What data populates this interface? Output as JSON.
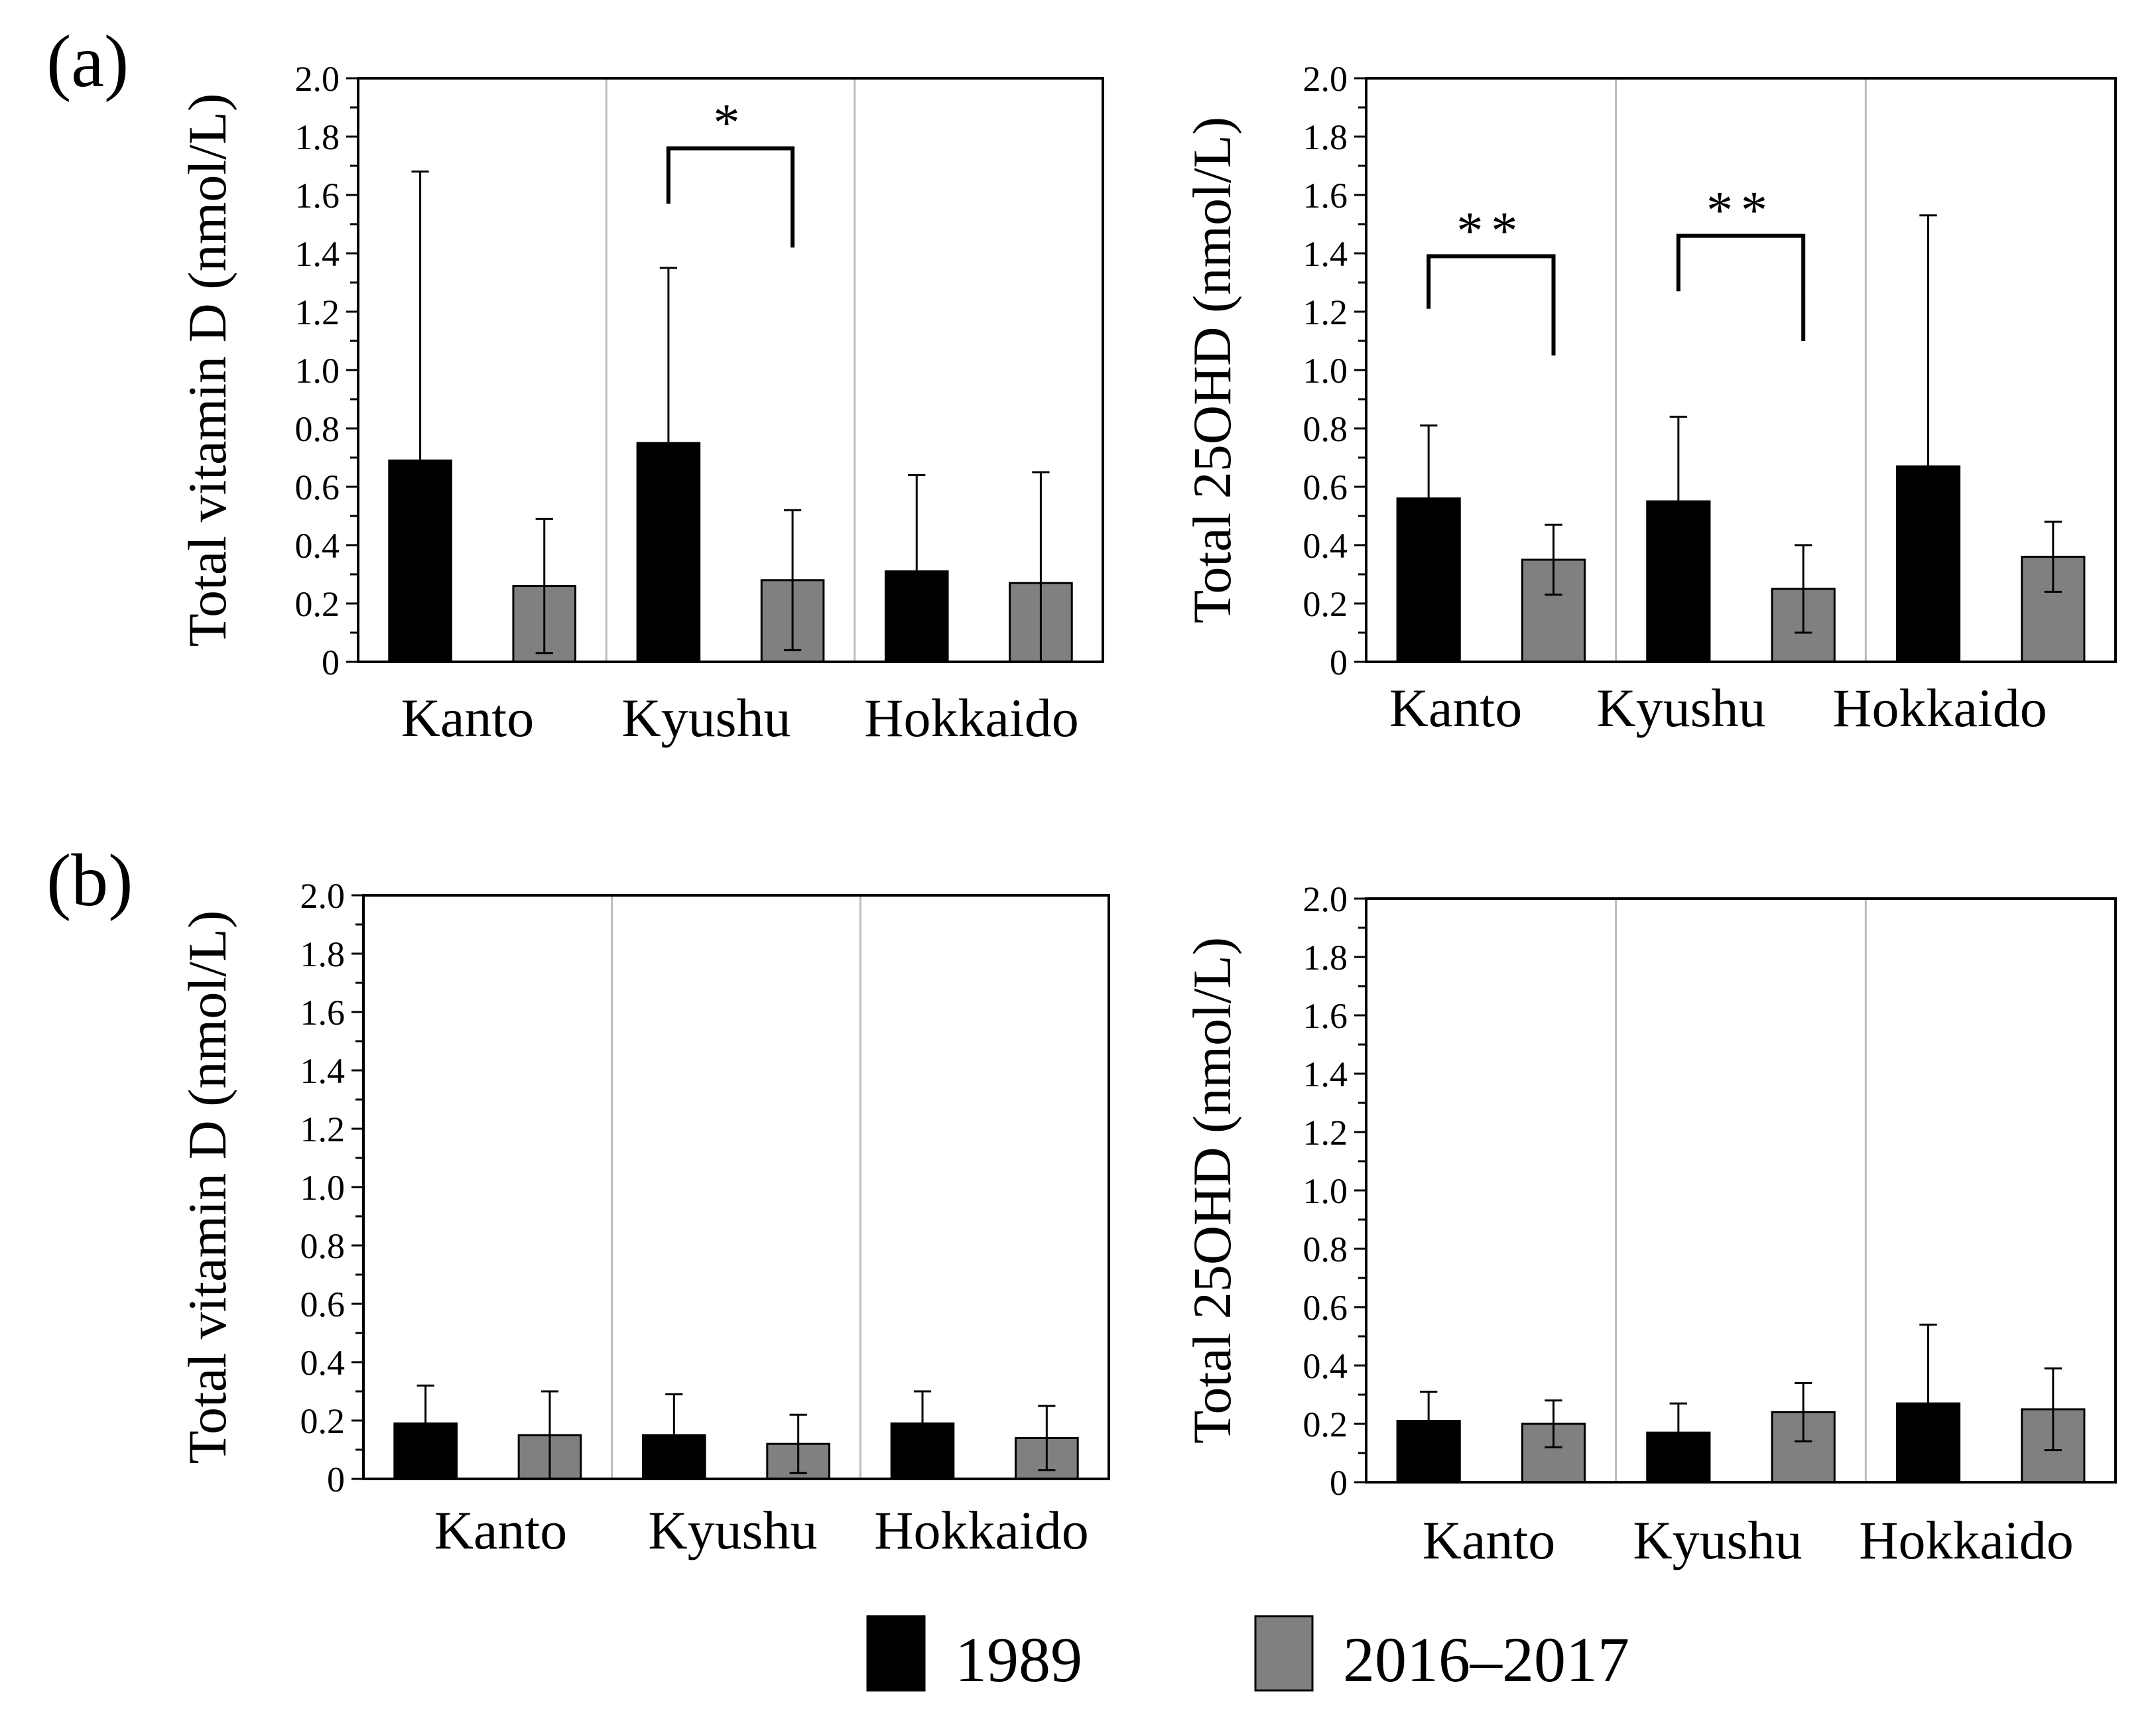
{
  "panel_labels": [
    "(a)",
    "(b)"
  ],
  "legend": {
    "items": [
      {
        "label": "1989",
        "color": "#000000"
      },
      {
        "label": "2016–2017",
        "color": "#808080"
      }
    ]
  },
  "colors": {
    "series_1989": "#000000",
    "series_2016": "#808080",
    "divider": "#bbbbbb"
  },
  "chart_data": [
    {
      "type": "bar",
      "panel": "(a)",
      "ylabel": "Total vitamin D (nmol/L)",
      "ylim": [
        0,
        2.0
      ],
      "yticks": [
        "0",
        "0.2",
        "0.4",
        "0.6",
        "0.8",
        "1.0",
        "1.2",
        "1.4",
        "1.6",
        "1.8",
        "2.0"
      ],
      "categories": [
        "Kanto",
        "Kyushu",
        "Hokkaido"
      ],
      "series": [
        {
          "name": "1989",
          "values": [
            0.69,
            0.75,
            0.31
          ],
          "errors": [
            0.99,
            0.6,
            0.33
          ]
        },
        {
          "name": "2016–2017",
          "values": [
            0.26,
            0.28,
            0.27
          ],
          "errors": [
            0.23,
            0.24,
            0.38
          ]
        }
      ],
      "significance": [
        {
          "category": "Kyushu",
          "label": "*",
          "left_value": 1.57,
          "right_value": 1.42,
          "top_value": 1.76
        }
      ]
    },
    {
      "type": "bar",
      "panel": "(a)",
      "ylabel": "Total 25OHD (nmol/L)",
      "ylim": [
        0,
        2.0
      ],
      "yticks": [
        "0",
        "0.2",
        "0.4",
        "0.6",
        "0.8",
        "1.0",
        "1.2",
        "1.4",
        "1.6",
        "1.8",
        "2.0"
      ],
      "categories": [
        "Kanto",
        "Kyushu",
        "Hokkaido"
      ],
      "series": [
        {
          "name": "1989",
          "values": [
            0.56,
            0.55,
            0.67
          ],
          "errors": [
            0.25,
            0.29,
            0.86
          ]
        },
        {
          "name": "2016–2017",
          "values": [
            0.35,
            0.25,
            0.36
          ],
          "errors": [
            0.12,
            0.15,
            0.12
          ]
        }
      ],
      "significance": [
        {
          "category": "Kanto",
          "label": "**",
          "left_value": 1.21,
          "right_value": 1.05,
          "top_value": 1.39
        },
        {
          "category": "Kyushu",
          "label": "**",
          "left_value": 1.27,
          "right_value": 1.1,
          "top_value": 1.46
        }
      ]
    },
    {
      "type": "bar",
      "panel": "(b)",
      "ylabel": "Total vitamin D (nmol/L)",
      "ylim": [
        0,
        2.0
      ],
      "yticks": [
        "0",
        "0.2",
        "0.4",
        "0.6",
        "0.8",
        "1.0",
        "1.2",
        "1.4",
        "1.6",
        "1.8",
        "2.0"
      ],
      "categories": [
        "Kanto",
        "Kyushu",
        "Hokkaido"
      ],
      "series": [
        {
          "name": "1989",
          "values": [
            0.19,
            0.15,
            0.19
          ],
          "errors": [
            0.13,
            0.14,
            0.11
          ]
        },
        {
          "name": "2016–2017",
          "values": [
            0.15,
            0.12,
            0.14
          ],
          "errors": [
            0.15,
            0.1,
            0.11
          ]
        }
      ],
      "significance": []
    },
    {
      "type": "bar",
      "panel": "(b)",
      "ylabel": "Total 25OHD (nmol/L)",
      "ylim": [
        0,
        2.0
      ],
      "yticks": [
        "0",
        "0.2",
        "0.4",
        "0.6",
        "0.8",
        "1.0",
        "1.2",
        "1.4",
        "1.6",
        "1.8",
        "2.0"
      ],
      "categories": [
        "Kanto",
        "Kyushu",
        "Hokkaido"
      ],
      "series": [
        {
          "name": "1989",
          "values": [
            0.21,
            0.17,
            0.27
          ],
          "errors": [
            0.1,
            0.1,
            0.27
          ]
        },
        {
          "name": "2016–2017",
          "values": [
            0.2,
            0.24,
            0.25
          ],
          "errors": [
            0.08,
            0.1,
            0.14
          ]
        }
      ],
      "significance": []
    }
  ]
}
